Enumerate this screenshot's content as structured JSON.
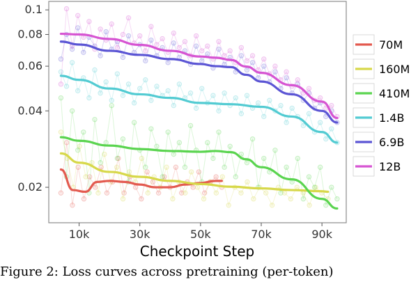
{
  "chart_data": {
    "type": "line",
    "title": "",
    "xlabel": "Checkpoint Step",
    "ylabel": "",
    "x_scale": "linear",
    "y_scale": "log",
    "xlim": [
      0,
      98000
    ],
    "ylim": [
      0.0145,
      0.108
    ],
    "x_ticks": [
      10000,
      30000,
      50000,
      70000,
      90000
    ],
    "x_tick_labels": [
      "10k",
      "30k",
      "50k",
      "70k",
      "90k"
    ],
    "y_ticks": [
      0.02,
      0.04,
      0.06,
      0.08,
      0.1
    ],
    "y_tick_labels": [
      "0.02",
      "0.04",
      "0.06",
      "0.08",
      "0.1"
    ],
    "grid": false,
    "legend_position": "right",
    "series": [
      {
        "name": "70M",
        "color": "#e35a4f",
        "x": [
          4000,
          8000,
          12000,
          16000,
          20000,
          25000,
          30000,
          35000,
          40000,
          45000,
          50000,
          55000,
          57000
        ],
        "y": [
          0.0235,
          0.0195,
          0.0192,
          0.021,
          0.0212,
          0.021,
          0.0205,
          0.02,
          0.02,
          0.0205,
          0.0208,
          0.0212,
          0.0212
        ],
        "raw": [
          0.019,
          0.03,
          0.017,
          0.024,
          0.018,
          0.022,
          0.02,
          0.024,
          0.019,
          0.021,
          0.026,
          0.019,
          0.022,
          0.02,
          0.018,
          0.023,
          0.021,
          0.019,
          0.022,
          0.02,
          0.024,
          0.019,
          0.021,
          0.02,
          0.023,
          0.019,
          0.021,
          0.022,
          0.02
        ]
      },
      {
        "name": "160M",
        "color": "#d7d84a",
        "x": [
          4000,
          10000,
          20000,
          30000,
          40000,
          50000,
          60000,
          70000,
          80000,
          90000,
          92000
        ],
        "y": [
          0.0272,
          0.025,
          0.023,
          0.022,
          0.0212,
          0.0206,
          0.0201,
          0.0198,
          0.0195,
          0.0193,
          0.0192
        ],
        "raw": [
          0.033,
          0.026,
          0.02,
          0.029,
          0.022,
          0.025,
          0.019,
          0.027,
          0.021,
          0.024,
          0.018,
          0.023,
          0.021,
          0.026,
          0.019,
          0.022,
          0.02,
          0.024,
          0.018,
          0.021,
          0.019,
          0.023,
          0.02,
          0.018,
          0.021,
          0.019,
          0.022,
          0.017,
          0.02,
          0.019,
          0.021,
          0.018,
          0.02,
          0.019,
          0.017,
          0.02,
          0.019,
          0.018,
          0.02,
          0.019,
          0.017,
          0.02,
          0.019,
          0.018
        ]
      },
      {
        "name": "410M",
        "color": "#5ad44f",
        "x": [
          4000,
          10000,
          20000,
          30000,
          40000,
          50000,
          55000,
          60000,
          65000,
          70000,
          80000,
          90000,
          95000
        ],
        "y": [
          0.0315,
          0.0305,
          0.0292,
          0.0283,
          0.0278,
          0.0276,
          0.0278,
          0.0275,
          0.0258,
          0.024,
          0.0215,
          0.018,
          0.0165
        ],
        "raw": [
          0.045,
          0.022,
          0.04,
          0.028,
          0.033,
          0.019,
          0.037,
          0.025,
          0.03,
          0.042,
          0.026,
          0.031,
          0.021,
          0.036,
          0.028,
          0.024,
          0.034,
          0.029,
          0.022,
          0.033,
          0.027,
          0.03,
          0.024,
          0.035,
          0.028,
          0.021,
          0.03,
          0.026,
          0.033,
          0.024,
          0.029,
          0.022,
          0.027,
          0.025,
          0.031,
          0.02,
          0.026,
          0.023,
          0.028,
          0.019,
          0.024,
          0.021,
          0.026,
          0.018,
          0.022,
          0.02,
          0.024,
          0.017,
          0.02,
          0.018
        ]
      },
      {
        "name": "1.4B",
        "color": "#52cbd2",
        "x": [
          4000,
          10000,
          20000,
          30000,
          40000,
          50000,
          60000,
          70000,
          80000,
          90000,
          95000
        ],
        "y": [
          0.055,
          0.053,
          0.049,
          0.0465,
          0.045,
          0.043,
          0.0425,
          0.0415,
          0.038,
          0.033,
          0.03
        ],
        "raw": [
          0.057,
          0.05,
          0.062,
          0.048,
          0.054,
          0.045,
          0.058,
          0.047,
          0.052,
          0.044,
          0.056,
          0.046,
          0.051,
          0.043,
          0.049,
          0.053,
          0.044,
          0.05,
          0.046,
          0.048,
          0.042,
          0.051,
          0.045,
          0.047,
          0.041,
          0.049,
          0.043,
          0.046,
          0.04,
          0.047,
          0.042,
          0.045,
          0.039,
          0.046,
          0.041,
          0.043,
          0.038,
          0.044,
          0.04,
          0.042,
          0.036,
          0.041,
          0.038,
          0.035,
          0.039,
          0.033,
          0.036,
          0.031,
          0.034,
          0.03
        ]
      },
      {
        "name": "6.9B",
        "color": "#5b55d4",
        "x": [
          4000,
          10000,
          20000,
          30000,
          40000,
          50000,
          55000,
          60000,
          65000,
          70000,
          80000,
          90000,
          95000
        ],
        "y": [
          0.075,
          0.073,
          0.069,
          0.0665,
          0.064,
          0.0612,
          0.06,
          0.0595,
          0.0555,
          0.0522,
          0.0465,
          0.04,
          0.036
        ],
        "raw": [
          0.064,
          0.08,
          0.07,
          0.085,
          0.068,
          0.078,
          0.072,
          0.066,
          0.082,
          0.07,
          0.075,
          0.065,
          0.079,
          0.068,
          0.073,
          0.063,
          0.076,
          0.066,
          0.071,
          0.062,
          0.074,
          0.065,
          0.069,
          0.061,
          0.072,
          0.063,
          0.067,
          0.059,
          0.07,
          0.061,
          0.065,
          0.057,
          0.066,
          0.058,
          0.062,
          0.054,
          0.06,
          0.052,
          0.057,
          0.049,
          0.054,
          0.047,
          0.051,
          0.044,
          0.047,
          0.041,
          0.043,
          0.038,
          0.04,
          0.036
        ]
      },
      {
        "name": "12B",
        "color": "#d654d2",
        "x": [
          4000,
          10000,
          20000,
          30000,
          40000,
          50000,
          55000,
          60000,
          65000,
          70000,
          80000,
          90000,
          95000
        ],
        "y": [
          0.0805,
          0.08,
          0.0768,
          0.0728,
          0.069,
          0.0655,
          0.0648,
          0.0635,
          0.0598,
          0.0565,
          0.0505,
          0.0435,
          0.0375
        ],
        "raw": [
          0.051,
          0.101,
          0.072,
          0.095,
          0.078,
          0.09,
          0.07,
          0.084,
          0.076,
          0.088,
          0.071,
          0.08,
          0.093,
          0.074,
          0.079,
          0.069,
          0.086,
          0.073,
          0.077,
          0.068,
          0.081,
          0.071,
          0.075,
          0.066,
          0.079,
          0.069,
          0.072,
          0.064,
          0.075,
          0.066,
          0.069,
          0.062,
          0.071,
          0.063,
          0.066,
          0.058,
          0.064,
          0.056,
          0.06,
          0.053,
          0.057,
          0.05,
          0.053,
          0.047,
          0.049,
          0.044,
          0.045,
          0.041,
          0.042,
          0.038
        ]
      }
    ]
  },
  "caption": "Figure 2: Loss curves across pretraining (per-token)"
}
